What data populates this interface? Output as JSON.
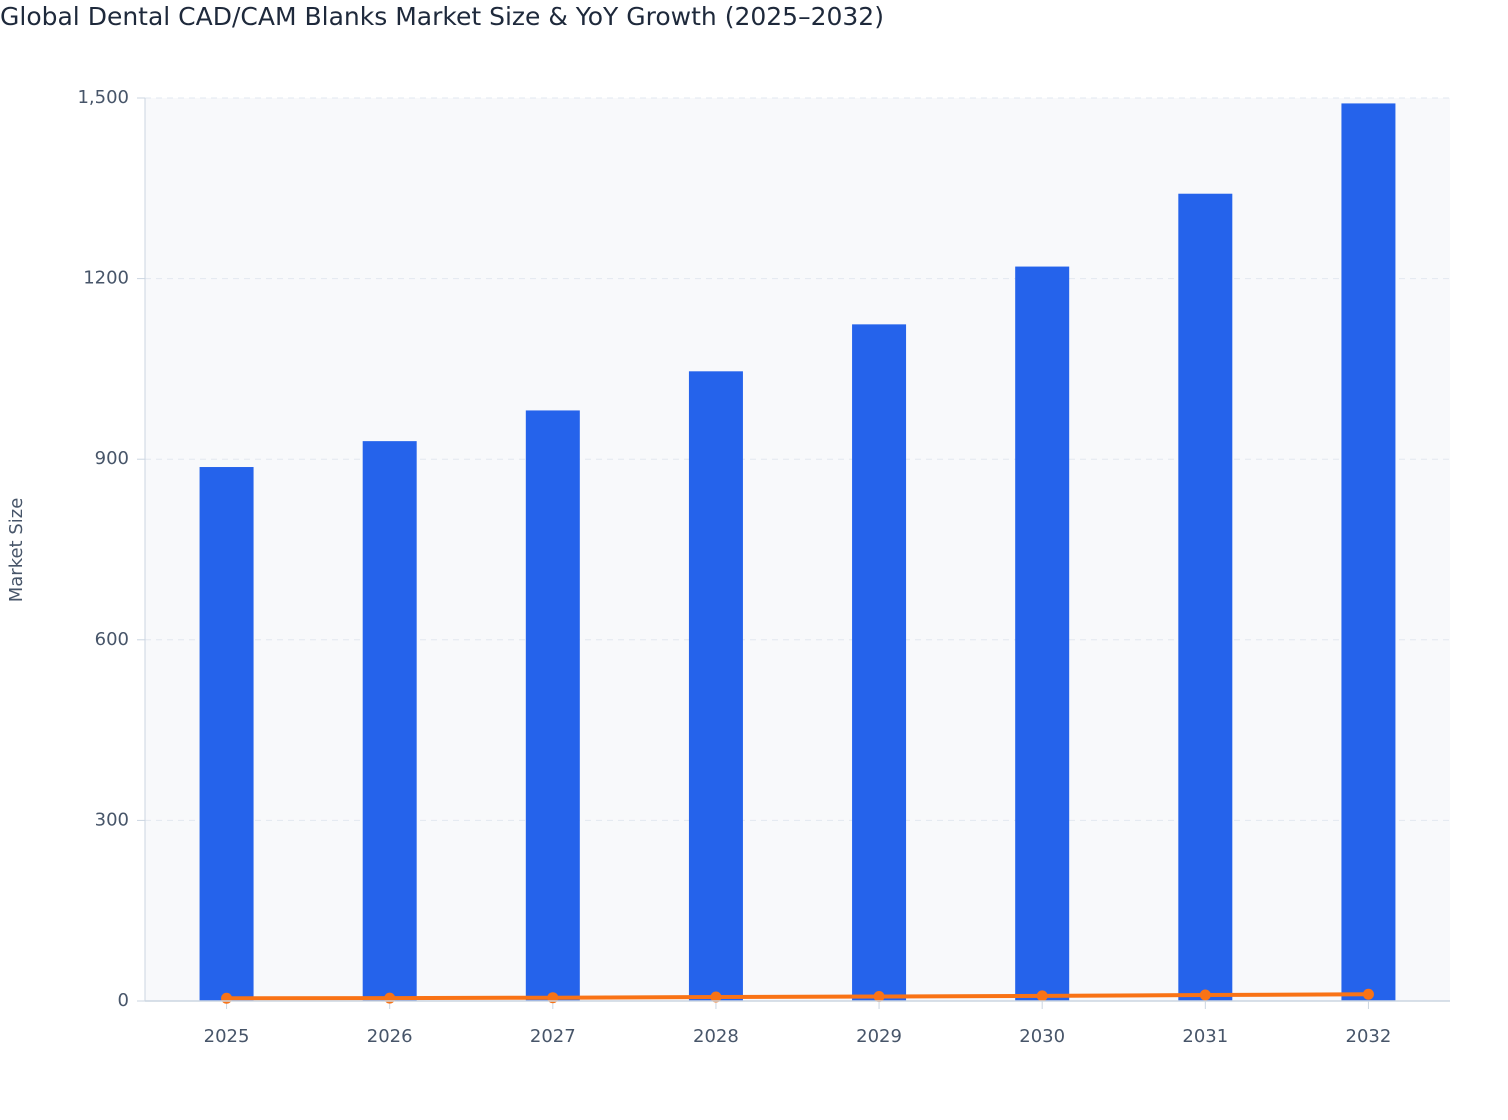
{
  "chart_data": {
    "type": "bar",
    "title": "Global Dental CAD/CAM Blanks Market Size & YoY Growth (2025–2032)",
    "y_label": "Market Size",
    "categories": [
      "2025",
      "2026",
      "2027",
      "2028",
      "2029",
      "2030",
      "2031",
      "2032"
    ],
    "series": [
      {
        "type": "bar",
        "color": "#2563eb",
        "values": [
          887,
          930,
          981,
          1046,
          1124,
          1220,
          1341,
          1491
        ]
      },
      {
        "type": "line",
        "color": "#f97316",
        "values": [
          4.5,
          4.8,
          5.5,
          6.6,
          7.5,
          8.5,
          9.9,
          11.2
        ]
      }
    ],
    "ylim": [
      0,
      1500
    ],
    "yticks": [
      0,
      300,
      600,
      900,
      1200,
      {
        "value": 1500,
        "label": "1,500"
      }
    ],
    "grid": true
  }
}
